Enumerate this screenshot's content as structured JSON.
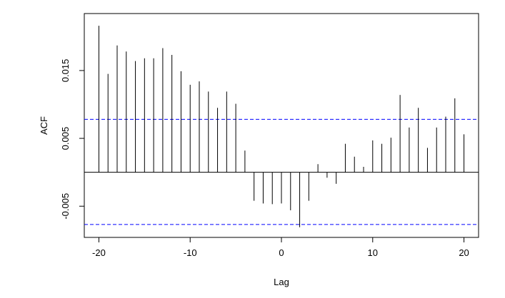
{
  "chart_data": {
    "type": "stem",
    "x_label": "Lag",
    "y_label": "ACF",
    "x": [
      -20,
      -19,
      -18,
      -17,
      -16,
      -15,
      -14,
      -13,
      -12,
      -11,
      -10,
      -9,
      -8,
      -7,
      -6,
      -5,
      -4,
      -3,
      -2,
      -1,
      0,
      1,
      2,
      3,
      4,
      5,
      6,
      7,
      8,
      9,
      10,
      11,
      12,
      13,
      14,
      15,
      16,
      17,
      18,
      19,
      20
    ],
    "values": [
      0.0216,
      0.0145,
      0.0187,
      0.0178,
      0.0164,
      0.0168,
      0.0168,
      0.0183,
      0.0173,
      0.0149,
      0.0129,
      0.0134,
      0.0119,
      0.0095,
      0.0119,
      0.0101,
      0.0032,
      -0.0042,
      -0.0046,
      -0.0047,
      -0.0046,
      -0.0056,
      -0.0081,
      -0.0042,
      0.0012,
      -0.0008,
      -0.0017,
      0.0042,
      0.0023,
      0.0008,
      0.0047,
      0.0042,
      0.0051,
      0.0114,
      0.0066,
      0.0095,
      0.0036,
      0.0066,
      0.0082,
      0.0109,
      0.0056
    ],
    "color": "#000000",
    "confidence_limits": [
      0.0078,
      -0.0077
    ],
    "confidence_color": "#0000ff",
    "xlim": [
      -21.6,
      21.6
    ],
    "ylim": [
      -0.0096,
      0.0234
    ],
    "xticks": [
      -20,
      -10,
      0,
      10,
      20
    ],
    "yticks": [
      -0.005,
      0.005,
      0.015
    ]
  }
}
